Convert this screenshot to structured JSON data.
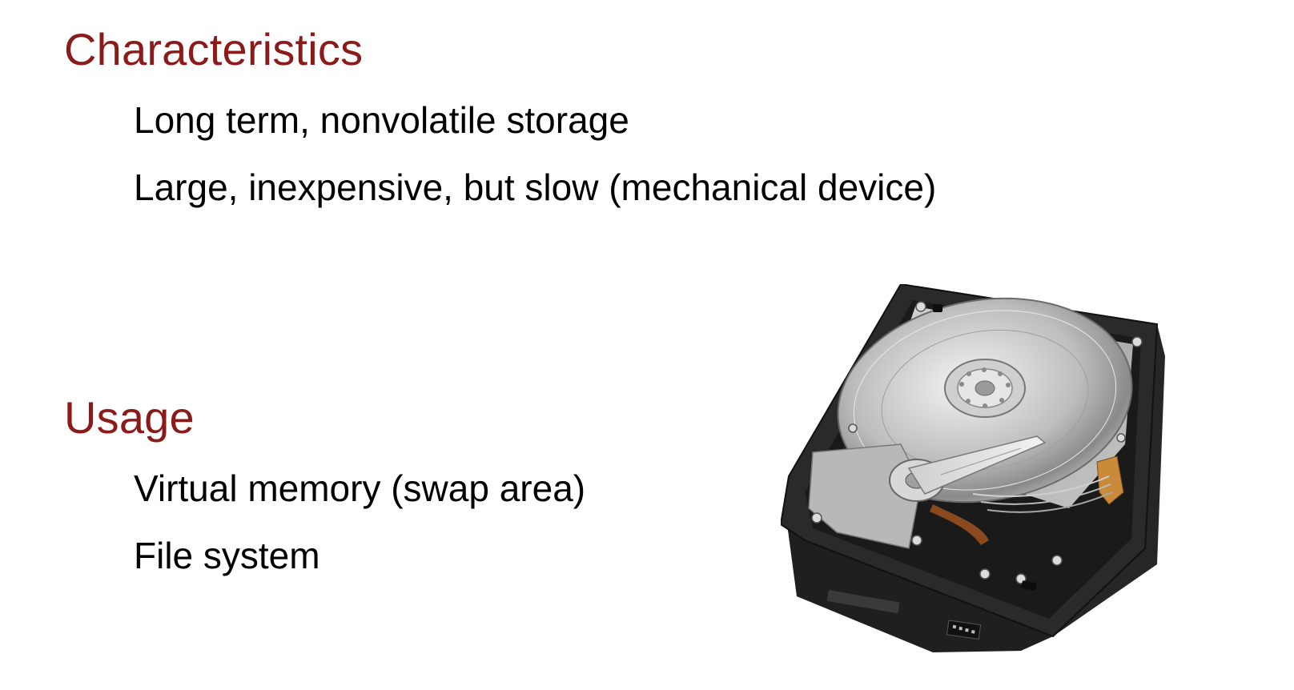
{
  "sections": [
    {
      "heading": "Characteristics",
      "items": [
        "Long term, nonvolatile storage",
        "Large, inexpensive, but slow (mechanical device)"
      ]
    },
    {
      "heading": "Usage",
      "items": [
        "Virtual memory (swap area)",
        "File system"
      ]
    }
  ],
  "image": {
    "icon": "hard-disk-drive-photo"
  },
  "colors": {
    "heading": "#8b1a1a",
    "body_text": "#000000",
    "background": "#ffffff"
  }
}
